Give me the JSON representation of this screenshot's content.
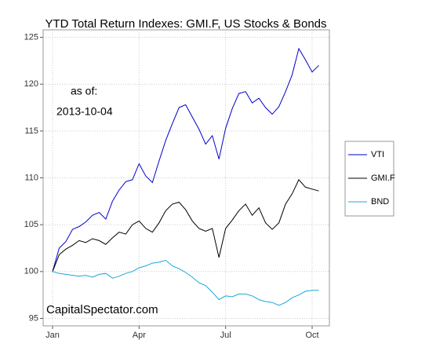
{
  "chart_data": {
    "type": "line",
    "title": "YTD Total Return Indexes: GMI.F, US Stocks & Bonds",
    "annotations": [
      "as of:",
      "2013-10-04",
      "CapitalSpectator.com"
    ],
    "categories": [
      "Jan",
      null,
      null,
      null,
      null,
      null,
      null,
      null,
      null,
      null,
      null,
      null,
      null,
      "Apr",
      null,
      null,
      null,
      null,
      null,
      null,
      null,
      null,
      null,
      null,
      null,
      null,
      "Jul",
      null,
      null,
      null,
      null,
      null,
      null,
      null,
      null,
      null,
      null,
      null,
      null,
      "Oct",
      null
    ],
    "series": [
      {
        "name": "VTI",
        "color": "#0000cd",
        "values": [
          100,
          102.5,
          103.2,
          104.5,
          104.8,
          105.3,
          106.0,
          106.3,
          105.6,
          107.5,
          108.7,
          109.6,
          109.8,
          111.5,
          110.2,
          109.5,
          111.8,
          114.0,
          115.8,
          117.5,
          117.8,
          116.5,
          115.2,
          113.6,
          114.5,
          112.0,
          115.3,
          117.4,
          119.0,
          119.2,
          118.0,
          118.5,
          117.5,
          116.8,
          117.6,
          119.2,
          121.0,
          123.8,
          122.6,
          121.3,
          122.0
        ]
      },
      {
        "name": "GMI.F",
        "color": "#000000",
        "values": [
          100,
          101.8,
          102.4,
          102.8,
          103.3,
          103.1,
          103.5,
          103.3,
          102.9,
          103.6,
          104.2,
          104.0,
          105.0,
          105.4,
          104.6,
          104.2,
          105.2,
          106.5,
          107.2,
          107.4,
          106.6,
          105.4,
          104.6,
          104.3,
          104.6,
          101.5,
          104.6,
          105.5,
          106.5,
          107.2,
          106.0,
          106.8,
          105.2,
          104.5,
          105.2,
          107.2,
          108.3,
          109.8,
          109.0,
          108.8,
          108.6
        ]
      },
      {
        "name": "BND",
        "color": "#1ba7d8",
        "values": [
          100,
          99.8,
          99.7,
          99.6,
          99.5,
          99.6,
          99.4,
          99.7,
          99.8,
          99.3,
          99.5,
          99.8,
          100.0,
          100.4,
          100.6,
          100.9,
          101.0,
          101.2,
          100.6,
          100.3,
          99.9,
          99.4,
          98.8,
          98.5,
          97.8,
          97.0,
          97.4,
          97.3,
          97.6,
          97.6,
          97.4,
          97.0,
          96.8,
          96.7,
          96.4,
          96.7,
          97.2,
          97.5,
          97.9,
          98.0,
          98.0
        ]
      }
    ],
    "ylim": [
      94.2,
      125.8
    ],
    "yticks": [
      95,
      100,
      105,
      110,
      115,
      120,
      125
    ],
    "grid": true,
    "legend": "right"
  }
}
